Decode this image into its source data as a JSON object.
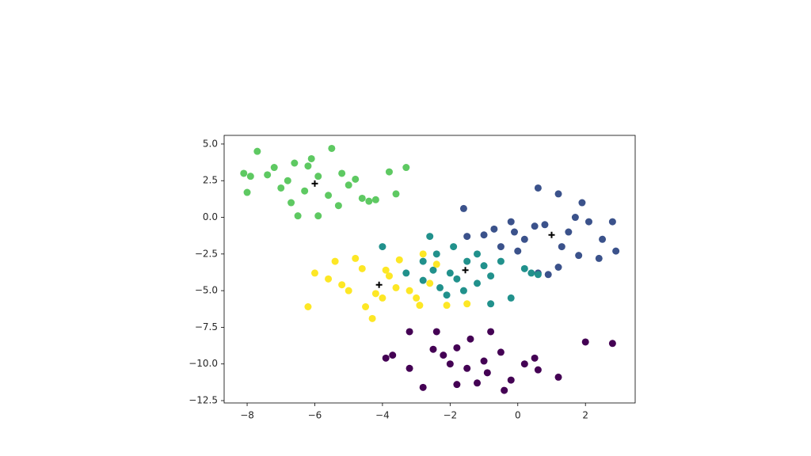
{
  "chart_data": {
    "type": "scatter",
    "xlim": [
      -8.68,
      3.47
    ],
    "ylim": [
      -12.66,
      5.59
    ],
    "xticks": [
      {
        "value": -8,
        "label": "−8"
      },
      {
        "value": -6,
        "label": "−6"
      },
      {
        "value": -4,
        "label": "−4"
      },
      {
        "value": -2,
        "label": "−2"
      },
      0,
      2
    ],
    "yticks": [
      {
        "value": 5,
        "label": "5.0"
      },
      {
        "value": 2.5,
        "label": "2.5"
      },
      {
        "value": 0,
        "label": "0.0"
      },
      {
        "value": -2.5,
        "label": "−2.5"
      },
      {
        "value": -5,
        "label": "−5.0"
      },
      {
        "value": -7.5,
        "label": "−7.5"
      },
      {
        "value": -10,
        "label": "−10.0"
      },
      {
        "value": -12.5,
        "label": "−12.5"
      }
    ],
    "series": [
      {
        "color": "#5ec962",
        "x": [
          -8.1,
          -7.7,
          -8,
          -7.4,
          -7,
          -6.7,
          -6.5,
          -6.2,
          -5.9,
          -5.5,
          -5.2,
          -5,
          -4.8,
          -4.6,
          -4.4,
          -4.2,
          -3.8,
          -3.3,
          -3.6,
          -5.9,
          -6.3,
          -7.2,
          -6.8,
          -5.6,
          -6.1,
          -7.9,
          -5.3,
          -6.6
        ],
        "y": [
          3.0,
          4.5,
          1.7,
          2.9,
          2.0,
          1.0,
          0.1,
          3.5,
          2.8,
          4.7,
          3.0,
          2.2,
          2.6,
          1.3,
          1.1,
          1.2,
          3.1,
          3.4,
          1.6,
          0.1,
          1.8,
          3.4,
          2.5,
          1.5,
          4.0,
          2.8,
          0.8,
          3.7
        ]
      },
      {
        "color": "#3b528b",
        "x": [
          -1.6,
          -0.2,
          0.5,
          0.6,
          1.2,
          1.9,
          2.1,
          2.8,
          2.9,
          2.4,
          1.8,
          1.2,
          0.9,
          0.6,
          0,
          -0.5,
          -1.0,
          -0.7,
          0.2,
          1.5,
          2.5,
          0.8,
          -0.1,
          1.7,
          -1.5,
          1.3
        ],
        "y": [
          0.6,
          -0.3,
          -0.6,
          2.0,
          1.6,
          1.0,
          -0.3,
          -0.3,
          -2.3,
          -2.8,
          -2.6,
          -3.4,
          -3.9,
          -3.8,
          -2.3,
          -2.0,
          -1.2,
          -0.8,
          -1.5,
          -1.0,
          -1.5,
          -0.5,
          -1.0,
          0.0,
          -1.3,
          -2.0
        ]
      },
      {
        "color": "#21918c",
        "x": [
          -4,
          -2.8,
          -2.6,
          -2.4,
          -2.8,
          -2.3,
          -2.1,
          -1.6,
          -1.2,
          -0.8,
          -0.8,
          -0.2,
          0.4,
          0.6,
          -0.5,
          -1.2,
          -1.9,
          -1.5,
          -2.0,
          -3.3,
          -1.0,
          -1.8,
          -2.5,
          0.2
        ],
        "y": [
          -2.0,
          -3.0,
          -1.3,
          -2.5,
          -4.3,
          -4.8,
          -5.3,
          -5.0,
          -4.5,
          -4.0,
          -5.9,
          -5.5,
          -3.8,
          -3.9,
          -3.0,
          -2.5,
          -2.0,
          -3.0,
          -3.8,
          -3.8,
          -3.3,
          -4.2,
          -3.6,
          -3.5
        ]
      },
      {
        "color": "#fde725",
        "x": [
          -6.2,
          -6.0,
          -5.6,
          -5.4,
          -5.0,
          -4.8,
          -4.5,
          -4.3,
          -4.0,
          -3.8,
          -3.5,
          -3.2,
          -3.0,
          -2.8,
          -2.6,
          -2.4,
          -2.1,
          -1.5,
          -4.6,
          -5.2,
          -3.6,
          -4.2,
          -3.9,
          -2.9
        ],
        "y": [
          -6.1,
          -3.8,
          -4.2,
          -3.0,
          -5.0,
          -2.8,
          -6.1,
          -6.9,
          -5.5,
          -4.0,
          -2.9,
          -5.0,
          -5.5,
          -2.5,
          -4.5,
          -3.2,
          -6.0,
          -5.9,
          -3.5,
          -4.6,
          -4.8,
          -5.2,
          -3.6,
          -6.0
        ]
      },
      {
        "color": "#440154",
        "x": [
          -3.2,
          -3.9,
          -3.7,
          -3.2,
          -2.8,
          -2.4,
          -2.0,
          -1.8,
          -1.5,
          -1.2,
          -0.8,
          -0.5,
          -0.2,
          0.5,
          0.6,
          1.2,
          2.0,
          2.8,
          -0.9,
          -1.8,
          -2.5,
          -1.0,
          -2.2,
          -0.4,
          -1.4,
          0.2
        ],
        "y": [
          -7.8,
          -9.6,
          -9.4,
          -10.3,
          -11.6,
          -7.8,
          -10.0,
          -8.9,
          -10.3,
          -11.3,
          -7.8,
          -9.2,
          -11.1,
          -9.6,
          -10.4,
          -10.9,
          -8.5,
          -8.6,
          -10.6,
          -11.4,
          -9.0,
          -9.8,
          -9.4,
          -11.8,
          -8.3,
          -10.0
        ]
      },
      {
        "color": "#000000",
        "marker": "+",
        "x": [
          -6,
          1,
          -1.55,
          -4.1
        ],
        "y": [
          2.3,
          -1.2,
          -3.6,
          -4.6
        ]
      }
    ]
  }
}
